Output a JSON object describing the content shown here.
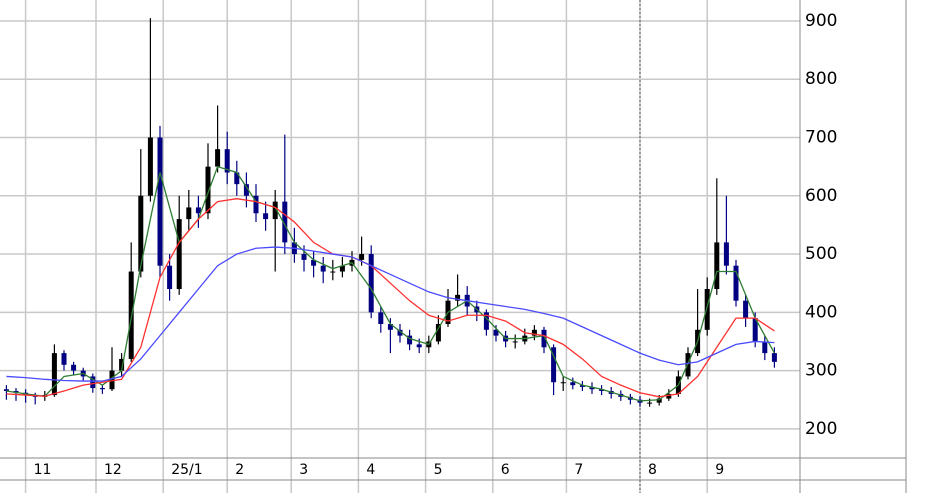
{
  "chart_data": {
    "type": "candlestick",
    "x": [
      0,
      3,
      6,
      9,
      12,
      15,
      18,
      21,
      24,
      27,
      30,
      33,
      36,
      39,
      42,
      45,
      48,
      51,
      54,
      57,
      60,
      63,
      66,
      69,
      72,
      75,
      78,
      81,
      84,
      87,
      90,
      93,
      96,
      99,
      102,
      105,
      108,
      111,
      114,
      117,
      120,
      123,
      126,
      129,
      132,
      135,
      138,
      141,
      144,
      147,
      150,
      153,
      156,
      159,
      162,
      165,
      168,
      171,
      174,
      177,
      180,
      183,
      186,
      189,
      192,
      195,
      198,
      201,
      204,
      207,
      210,
      213,
      216,
      219,
      222,
      225,
      228,
      231,
      234,
      237,
      240
    ],
    "open": [
      268,
      265,
      262,
      258,
      255,
      258,
      330,
      310,
      300,
      290,
      270,
      268,
      300,
      320,
      470,
      600,
      700,
      480,
      440,
      560,
      580,
      570,
      650,
      680,
      640,
      620,
      600,
      570,
      560,
      590,
      520,
      500,
      490,
      480,
      470,
      470,
      480,
      490,
      500,
      400,
      380,
      370,
      360,
      345,
      340,
      350,
      380,
      420,
      430,
      410,
      400,
      370,
      360,
      350,
      350,
      360,
      370,
      340,
      280,
      280,
      275,
      272,
      268,
      265,
      260,
      255,
      250,
      245,
      245,
      252,
      260,
      290,
      330,
      370,
      440,
      520,
      480,
      420,
      390,
      350,
      330
    ],
    "high": [
      275,
      270,
      268,
      262,
      265,
      345,
      335,
      315,
      305,
      295,
      275,
      340,
      330,
      520,
      680,
      905,
      720,
      500,
      600,
      610,
      600,
      690,
      755,
      710,
      660,
      640,
      620,
      590,
      610,
      705,
      545,
      515,
      505,
      495,
      490,
      495,
      505,
      530,
      515,
      410,
      390,
      380,
      370,
      355,
      360,
      395,
      440,
      465,
      445,
      420,
      405,
      378,
      368,
      362,
      372,
      378,
      375,
      345,
      290,
      288,
      282,
      280,
      275,
      272,
      266,
      260,
      256,
      252,
      258,
      268,
      300,
      340,
      440,
      460,
      630,
      600,
      490,
      430,
      400,
      360,
      340
    ],
    "low": [
      250,
      248,
      245,
      242,
      248,
      255,
      300,
      292,
      282,
      262,
      260,
      265,
      290,
      315,
      460,
      590,
      460,
      420,
      430,
      540,
      545,
      560,
      640,
      620,
      600,
      580,
      555,
      540,
      470,
      500,
      485,
      470,
      460,
      450,
      455,
      460,
      470,
      480,
      390,
      365,
      330,
      348,
      335,
      330,
      330,
      345,
      375,
      410,
      395,
      385,
      360,
      350,
      340,
      338,
      345,
      352,
      330,
      258,
      265,
      268,
      265,
      260,
      258,
      252,
      248,
      242,
      238,
      238,
      240,
      248,
      255,
      285,
      325,
      360,
      430,
      465,
      410,
      375,
      340,
      318,
      305
    ],
    "close": [
      265,
      262,
      258,
      255,
      258,
      330,
      310,
      300,
      290,
      270,
      268,
      300,
      320,
      470,
      600,
      700,
      480,
      440,
      560,
      580,
      570,
      650,
      680,
      640,
      620,
      600,
      570,
      560,
      590,
      520,
      500,
      490,
      480,
      470,
      470,
      480,
      490,
      500,
      400,
      380,
      370,
      360,
      345,
      340,
      350,
      380,
      420,
      430,
      410,
      400,
      370,
      360,
      350,
      350,
      360,
      370,
      340,
      280,
      280,
      275,
      272,
      268,
      265,
      260,
      255,
      250,
      245,
      245,
      252,
      260,
      290,
      330,
      370,
      440,
      520,
      480,
      420,
      390,
      350,
      330,
      315
    ],
    "up_color": "#000000",
    "down_color": "#000080",
    "ma_x": [
      0,
      6,
      12,
      18,
      24,
      30,
      36,
      42,
      48,
      54,
      60,
      66,
      72,
      78,
      84,
      90,
      96,
      102,
      108,
      114,
      120,
      126,
      132,
      138,
      144,
      150,
      156,
      162,
      168,
      174,
      180,
      186,
      192,
      198,
      204,
      210,
      216,
      222,
      228,
      234,
      240
    ],
    "moving_averages": [
      {
        "color": "#2e7d32",
        "values": [
          265,
          260,
          256,
          290,
          295,
          275,
          300,
          480,
          640,
          520,
          560,
          650,
          640,
          590,
          580,
          520,
          490,
          475,
          485,
          440,
          380,
          355,
          345,
          400,
          420,
          390,
          355,
          355,
          360,
          290,
          275,
          268,
          258,
          248,
          250,
          275,
          350,
          470,
          470,
          390,
          330
        ]
      },
      {
        "color": "#ff3030",
        "values": [
          260,
          258,
          256,
          265,
          275,
          280,
          285,
          340,
          460,
          520,
          560,
          590,
          595,
          590,
          580,
          555,
          520,
          500,
          495,
          480,
          450,
          420,
          395,
          385,
          395,
          395,
          385,
          365,
          360,
          345,
          320,
          290,
          275,
          262,
          255,
          260,
          290,
          340,
          390,
          390,
          368
        ]
      },
      {
        "color": "#4a4aff",
        "values": [
          290,
          288,
          285,
          283,
          282,
          282,
          290,
          320,
          360,
          400,
          440,
          480,
          500,
          510,
          512,
          510,
          505,
          500,
          495,
          480,
          465,
          450,
          435,
          425,
          420,
          415,
          410,
          405,
          398,
          390,
          375,
          360,
          345,
          330,
          318,
          310,
          315,
          330,
          345,
          350,
          348
        ]
      }
    ],
    "xlim": [
      -2,
      248
    ],
    "xticks": [
      {
        "value": 6,
        "label": "11"
      },
      {
        "value": 28,
        "label": "12"
      },
      {
        "value": 49,
        "label": "25/1"
      },
      {
        "value": 69,
        "label": "2"
      },
      {
        "value": 89,
        "label": "3"
      },
      {
        "value": 110,
        "label": "4"
      },
      {
        "value": 131,
        "label": "5"
      },
      {
        "value": 152,
        "label": "6"
      },
      {
        "value": 175,
        "label": "7"
      },
      {
        "value": 198,
        "label": "8"
      },
      {
        "value": 219,
        "label": "9"
      }
    ],
    "cursor_x": 198,
    "ylim": [
      150,
      936
    ],
    "yticks": [
      200,
      300,
      400,
      500,
      600,
      700,
      800,
      900
    ],
    "grid": true
  }
}
